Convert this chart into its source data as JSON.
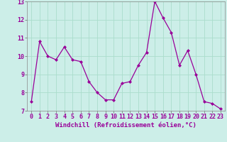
{
  "x": [
    0,
    1,
    2,
    3,
    4,
    5,
    6,
    7,
    8,
    9,
    10,
    11,
    12,
    13,
    14,
    15,
    16,
    17,
    18,
    19,
    20,
    21,
    22,
    23
  ],
  "y": [
    7.5,
    10.8,
    10.0,
    9.8,
    10.5,
    9.8,
    9.7,
    8.6,
    8.0,
    7.6,
    7.6,
    8.5,
    8.6,
    9.5,
    10.2,
    13.0,
    12.1,
    11.3,
    9.5,
    10.3,
    9.0,
    7.5,
    7.4,
    7.1
  ],
  "xlabel": "Windchill (Refroidissement éolien,°C)",
  "ylim": [
    7,
    13
  ],
  "xlim": [
    -0.5,
    23.5
  ],
  "yticks": [
    7,
    8,
    9,
    10,
    11,
    12,
    13
  ],
  "xticks": [
    0,
    1,
    2,
    3,
    4,
    5,
    6,
    7,
    8,
    9,
    10,
    11,
    12,
    13,
    14,
    15,
    16,
    17,
    18,
    19,
    20,
    21,
    22,
    23
  ],
  "line_color": "#990099",
  "marker": "D",
  "marker_size": 2.0,
  "background_color": "#cceee8",
  "grid_color": "#aaddcc",
  "xlabel_fontsize": 6.5,
  "tick_fontsize": 6.0
}
